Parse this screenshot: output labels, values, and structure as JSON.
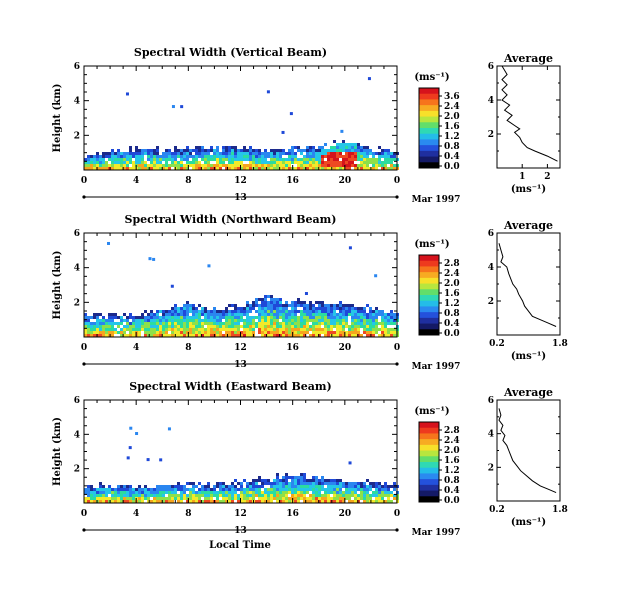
{
  "panels": [
    {
      "title": "Spectral Width (Vertical Beam)",
      "ylabel": "Height (km)",
      "colorbar_unit": "(ms⁻¹)",
      "colorbar_ticks": [
        "3.6",
        "2.4",
        "2.0",
        "1.6",
        "1.2",
        "0.8",
        "0.4",
        "0.0"
      ],
      "avg_title": "Average",
      "avg_xlabel": "(ms⁻¹)",
      "avg_xticks": [
        "1",
        "2"
      ],
      "date_label": "Mar 1997"
    },
    {
      "title": "Spectral Width (Northward Beam)",
      "ylabel": "Height (km)",
      "colorbar_unit": "(ms⁻¹)",
      "colorbar_ticks": [
        "2.8",
        "2.4",
        "2.0",
        "1.6",
        "1.2",
        "0.8",
        "0.4",
        "0.0"
      ],
      "avg_title": "Average",
      "avg_xlabel": "(ms⁻¹)",
      "avg_xticks": [
        "0.2",
        "1.8"
      ],
      "date_label": "Mar 1997"
    },
    {
      "title": "Spectral Width (Eastward Beam)",
      "ylabel": "Height (km)",
      "colorbar_unit": "(ms⁻¹)",
      "colorbar_ticks": [
        "2.8",
        "2.4",
        "2.0",
        "1.6",
        "1.2",
        "0.8",
        "0.4",
        "0.0"
      ],
      "avg_title": "Average",
      "avg_xlabel": "(ms⁻¹)",
      "avg_xticks": [
        "0.2",
        "1.8"
      ],
      "date_label": "Mar 1997"
    }
  ],
  "xlabel": "Local Time",
  "chart_data": [
    {
      "type": "heatmap",
      "title": "Spectral Width (Vertical Beam)",
      "xlabel": "",
      "ylabel": "Height (km)",
      "x_ticks": [
        "0",
        "4",
        "8",
        "12",
        "16",
        "20",
        "0"
      ],
      "day_label": "13",
      "y_ticks": [
        "2",
        "4",
        "6"
      ],
      "xlim": [
        0,
        24
      ],
      "ylim": [
        0,
        6
      ],
      "colorbar": {
        "label": "(ms⁻¹)",
        "ticks": [
          3.6,
          2.4,
          2.0,
          1.6,
          1.2,
          0.8,
          0.4,
          0.0
        ]
      },
      "echo_top_km": [
        [
          0,
          0.8
        ],
        [
          2,
          1.0
        ],
        [
          4,
          1.2
        ],
        [
          6,
          1.1
        ],
        [
          8,
          1.2
        ],
        [
          10,
          1.3
        ],
        [
          12,
          1.2
        ],
        [
          14,
          1.1
        ],
        [
          16,
          1.2
        ],
        [
          18,
          1.3
        ],
        [
          20,
          1.6
        ],
        [
          22,
          1.2
        ],
        [
          24,
          1.0
        ]
      ],
      "hot_spot": {
        "time_h": 19.5,
        "height_km": 1.0,
        "value": 3.6
      }
    },
    {
      "type": "line",
      "title": "Average",
      "xlabel": "(ms⁻¹)",
      "ylabel": "",
      "xlim": [
        0,
        2.5
      ],
      "ylim": [
        0,
        6
      ],
      "x_ticks": [
        "1",
        "2"
      ],
      "y_ticks": [
        "2",
        "4",
        "6"
      ],
      "points": [
        [
          0.2,
          6.0
        ],
        [
          0.4,
          5.5
        ],
        [
          0.2,
          5.2
        ],
        [
          0.4,
          4.9
        ],
        [
          0.2,
          4.6
        ],
        [
          0.4,
          4.3
        ],
        [
          0.2,
          4.0
        ],
        [
          0.5,
          3.7
        ],
        [
          0.3,
          3.4
        ],
        [
          0.6,
          3.1
        ],
        [
          0.4,
          2.8
        ],
        [
          0.7,
          2.5
        ],
        [
          0.9,
          2.3
        ],
        [
          0.7,
          2.1
        ],
        [
          0.9,
          1.8
        ],
        [
          1.0,
          1.5
        ],
        [
          1.2,
          1.2
        ],
        [
          1.5,
          1.0
        ],
        [
          2.0,
          0.7
        ],
        [
          2.4,
          0.4
        ]
      ]
    },
    {
      "type": "heatmap",
      "title": "Spectral Width (Northward Beam)",
      "xlabel": "",
      "ylabel": "Height (km)",
      "x_ticks": [
        "0",
        "4",
        "8",
        "12",
        "16",
        "20",
        "0"
      ],
      "day_label": "13",
      "y_ticks": [
        "2",
        "4",
        "6"
      ],
      "xlim": [
        0,
        24
      ],
      "ylim": [
        0,
        6
      ],
      "colorbar": {
        "label": "(ms⁻¹)",
        "ticks": [
          2.8,
          2.4,
          2.0,
          1.6,
          1.2,
          0.8,
          0.4,
          0.0
        ]
      },
      "echo_top_km": [
        [
          0,
          1.2
        ],
        [
          2,
          1.3
        ],
        [
          4,
          1.2
        ],
        [
          6,
          1.6
        ],
        [
          8,
          1.9
        ],
        [
          10,
          1.5
        ],
        [
          12,
          1.8
        ],
        [
          14,
          2.3
        ],
        [
          16,
          2.0
        ],
        [
          18,
          1.9
        ],
        [
          20,
          1.8
        ],
        [
          22,
          1.6
        ],
        [
          24,
          1.4
        ]
      ]
    },
    {
      "type": "line",
      "title": "Average",
      "xlabel": "(ms⁻¹)",
      "ylabel": "",
      "xlim": [
        0.2,
        1.8
      ],
      "ylim": [
        0,
        6
      ],
      "x_ticks": [
        "0.2",
        "1.8"
      ],
      "y_ticks": [
        "2",
        "4",
        "6"
      ],
      "points": [
        [
          0.25,
          5.4
        ],
        [
          0.3,
          5.0
        ],
        [
          0.35,
          4.6
        ],
        [
          0.3,
          4.3
        ],
        [
          0.45,
          4.0
        ],
        [
          0.5,
          3.6
        ],
        [
          0.55,
          3.3
        ],
        [
          0.6,
          3.0
        ],
        [
          0.7,
          2.7
        ],
        [
          0.75,
          2.4
        ],
        [
          0.85,
          2.0
        ],
        [
          0.9,
          1.7
        ],
        [
          1.0,
          1.4
        ],
        [
          1.1,
          1.1
        ],
        [
          1.3,
          0.9
        ],
        [
          1.5,
          0.7
        ],
        [
          1.7,
          0.5
        ]
      ]
    },
    {
      "type": "heatmap",
      "title": "Spectral Width (Eastward Beam)",
      "xlabel": "Local Time",
      "ylabel": "Height (km)",
      "x_ticks": [
        "0",
        "4",
        "8",
        "12",
        "16",
        "20",
        "0"
      ],
      "day_label": "13",
      "y_ticks": [
        "2",
        "4",
        "6"
      ],
      "xlim": [
        0,
        24
      ],
      "ylim": [
        0,
        6
      ],
      "colorbar": {
        "label": "(ms⁻¹)",
        "ticks": [
          2.8,
          2.4,
          2.0,
          1.6,
          1.2,
          0.8,
          0.4,
          0.0
        ]
      },
      "echo_top_km": [
        [
          0,
          0.9
        ],
        [
          2,
          1.0
        ],
        [
          4,
          0.9
        ],
        [
          6,
          1.0
        ],
        [
          8,
          1.1
        ],
        [
          10,
          1.0
        ],
        [
          12,
          1.2
        ],
        [
          14,
          1.4
        ],
        [
          16,
          1.6
        ],
        [
          18,
          1.4
        ],
        [
          20,
          1.2
        ],
        [
          22,
          1.1
        ],
        [
          24,
          1.0
        ]
      ]
    },
    {
      "type": "line",
      "title": "Average",
      "xlabel": "(ms⁻¹)",
      "ylabel": "",
      "xlim": [
        0.2,
        1.8
      ],
      "ylim": [
        0,
        6
      ],
      "x_ticks": [
        "0.2",
        "1.8"
      ],
      "y_ticks": [
        "2",
        "4",
        "6"
      ],
      "points": [
        [
          0.25,
          5.5
        ],
        [
          0.3,
          5.1
        ],
        [
          0.25,
          4.8
        ],
        [
          0.35,
          4.5
        ],
        [
          0.3,
          4.2
        ],
        [
          0.4,
          3.9
        ],
        [
          0.35,
          3.6
        ],
        [
          0.45,
          3.3
        ],
        [
          0.5,
          3.0
        ],
        [
          0.55,
          2.7
        ],
        [
          0.6,
          2.4
        ],
        [
          0.7,
          2.1
        ],
        [
          0.8,
          1.8
        ],
        [
          0.95,
          1.5
        ],
        [
          1.1,
          1.2
        ],
        [
          1.3,
          0.9
        ],
        [
          1.5,
          0.7
        ],
        [
          1.7,
          0.5
        ]
      ]
    }
  ]
}
